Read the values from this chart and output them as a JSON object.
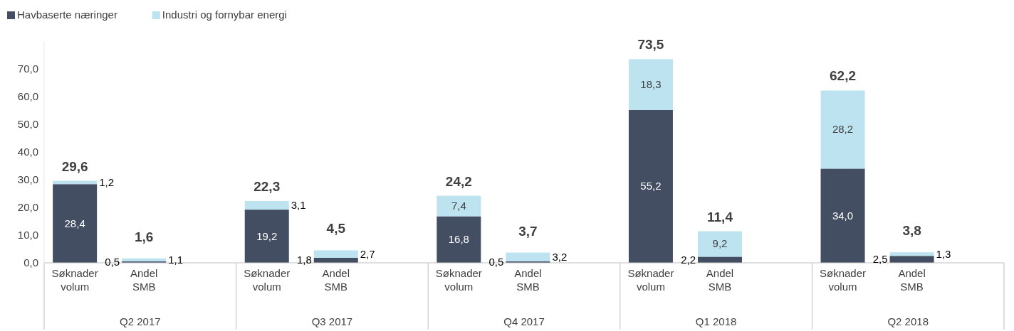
{
  "chart_data": {
    "type": "bar",
    "stacked": true,
    "categories": [
      "Søknader volum",
      "Andel SMB",
      "Søknader volum",
      "Andel SMB",
      "Søknader volum",
      "Andel SMB",
      "Søknader volum",
      "Andel SMB",
      "Søknader volum",
      "Andel SMB"
    ],
    "annotations": [
      "Q2 2017",
      "Q3 2017",
      "Q4 2017",
      "Q1 2018",
      "Q2 2018"
    ],
    "series": [
      {
        "name": "Havbaserte næringer",
        "color": "#434e63",
        "values": [
          28.4,
          0.5,
          19.2,
          1.8,
          16.8,
          0.5,
          55.2,
          2.2,
          34.0,
          2.5
        ],
        "value_labels": [
          "28,4",
          "0,5",
          "19,2",
          "1,8",
          "16,8",
          "0,5",
          "55,2",
          "2,2",
          "34,0",
          "2,5"
        ]
      },
      {
        "name": "Industri og fornybar energi",
        "color": "#bde3f0",
        "values": [
          1.2,
          1.1,
          3.1,
          2.7,
          7.4,
          3.2,
          18.3,
          9.2,
          28.2,
          1.3
        ],
        "value_labels": [
          "1,2",
          "1,1",
          "3,1",
          "2,7",
          "7,4",
          "3,2",
          "18,3",
          "9,2",
          "28,2",
          "1,3"
        ]
      }
    ],
    "totals": [
      "29,6",
      "1,6",
      "22,3",
      "4,5",
      "24,2",
      "3,7",
      "73,5",
      "11,4",
      "62,2",
      "3,8"
    ],
    "ylim": [
      0,
      80
    ],
    "yticks": [
      {
        "value": 0,
        "label": "0,0"
      },
      {
        "value": 10,
        "label": "10,0"
      },
      {
        "value": 20,
        "label": "20,0"
      },
      {
        "value": 30,
        "label": "30,0"
      },
      {
        "value": 40,
        "label": "40,0"
      },
      {
        "value": 50,
        "label": "50,0"
      },
      {
        "value": 60,
        "label": "60,0"
      },
      {
        "value": 70,
        "label": "70,0"
      }
    ],
    "grid": false,
    "legend": "top left"
  }
}
